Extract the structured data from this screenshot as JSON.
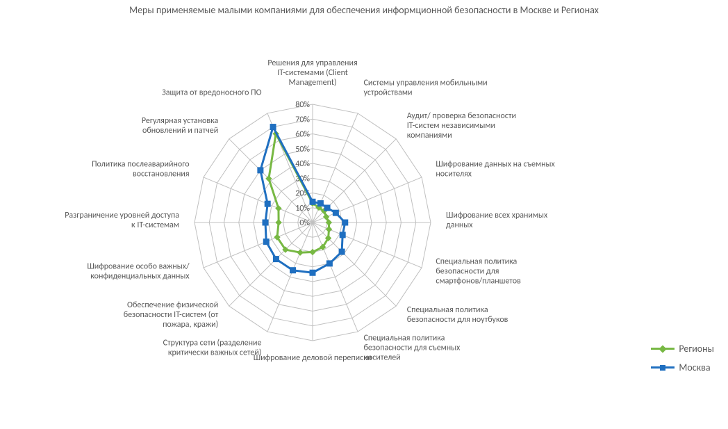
{
  "title": "Меры применяемые малыми компаниями для обеспечения информционной безопасности в Москве и Регионах",
  "chart": {
    "type": "radar",
    "background_color": "#ffffff",
    "grid_color": "#c0c0c0",
    "grid_stroke_width": 1,
    "axis_fontsize": 12,
    "axis_color": "#595959",
    "tick_fontsize": 12,
    "tick_color": "#595959",
    "max": 80,
    "tick_step": 10,
    "ticks": [
      "0%",
      "10%",
      "20%",
      "30%",
      "40%",
      "50%",
      "60%",
      "70%",
      "80%"
    ],
    "categories": [
      "Решения для управления IT-системами (Client Management)",
      "Системы управления мобильными устройствами",
      "Аудит/ проверка безопасности IT-систем независимыми компаниями",
      "Шифрование данных на съемных носителях",
      "Шифрование всех хранимых данных",
      "Специальная политика безопасности для смартфонов/планшетов",
      "Специальная политика безопасности для ноутбуков",
      "Специальная политика безопасности для съемных носителей",
      "Шифрование деловой переписки",
      "Структура сети (разделение критически важных сетей)",
      "Обеспечение физической безопасности IT-систем (от пожара, кражи)",
      "Шифрование особо важных/ конфиденциальных данных",
      "Разграничение уровней доступа к IT-системам",
      "Политика послеаварийного восстановления",
      "Регулярная установка обновлений и патчей",
      "Защита от вредоносного ПО"
    ],
    "series": [
      {
        "name": "Регионы",
        "color": "#77b843",
        "marker": "diamond",
        "marker_size": 8,
        "line_width": 3,
        "values": [
          13,
          11,
          11,
          10,
          11,
          12,
          15,
          18,
          20,
          22,
          26,
          26,
          23,
          25,
          42,
          65
        ]
      },
      {
        "name": "Москва",
        "color": "#1f6fc0",
        "marker": "square",
        "marker_size": 8,
        "line_width": 3,
        "values": [
          14,
          14,
          14,
          17,
          22,
          22,
          28,
          30,
          34,
          35,
          35,
          34,
          32,
          33,
          50,
          70
        ]
      }
    ],
    "legend": {
      "position": "right",
      "fontsize": 14,
      "text_color": "#595959"
    }
  }
}
